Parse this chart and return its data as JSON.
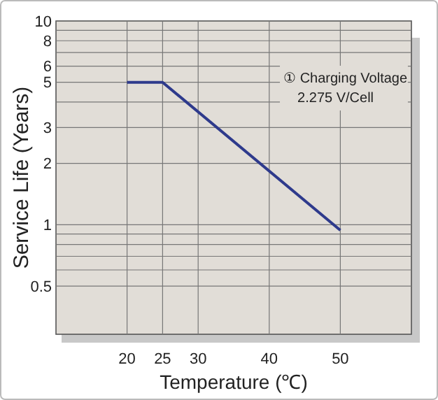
{
  "chart_data": {
    "type": "line",
    "xlabel": "Temperature (℃)",
    "ylabel": "Service Life (Years)",
    "x": [
      20,
      25,
      50
    ],
    "series": [
      {
        "color": "#2e3a8c",
        "values": [
          5,
          5,
          0.94
        ]
      }
    ],
    "xlim": [
      10,
      60
    ],
    "xticks": [
      20,
      25,
      30,
      40,
      50
    ],
    "ylim": [
      0.29,
      10
    ],
    "log": true,
    "grid": true,
    "yticks": [
      10,
      {
        "value": 9,
        "label": null
      },
      8,
      {
        "value": 7,
        "label": null
      },
      6,
      5,
      {
        "value": 4,
        "label": null
      },
      3,
      2,
      1,
      {
        "value": 0.9,
        "label": null
      },
      {
        "value": 0.8,
        "label": null
      },
      {
        "value": 0.7,
        "label": null
      },
      {
        "value": 0.6,
        "label": null
      },
      0.5
    ],
    "annotations": [
      "① Charging Voltage\n2.275 V/Cell"
    ]
  }
}
